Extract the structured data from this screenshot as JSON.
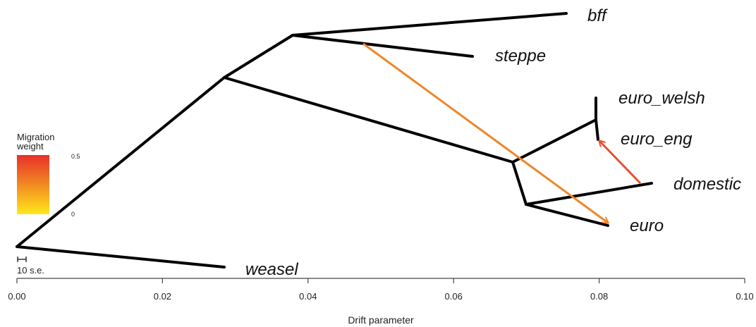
{
  "chart_data": {
    "type": "tree",
    "axis": {
      "title": "Drift parameter",
      "ticks": [
        "0.00",
        "0.02",
        "0.04",
        "0.06",
        "0.08",
        "0.10"
      ],
      "range": [
        0.0,
        0.1
      ]
    },
    "leaves": [
      {
        "id": "bff",
        "label": "bff"
      },
      {
        "id": "steppe",
        "label": "steppe"
      },
      {
        "id": "euro_welsh",
        "label": "euro_welsh"
      },
      {
        "id": "euro_eng",
        "label": "euro_eng"
      },
      {
        "id": "domestic",
        "label": "domestic"
      },
      {
        "id": "euro",
        "label": "euro"
      },
      {
        "id": "weasel",
        "label": "weasel"
      }
    ],
    "migration_edges": [
      {
        "from": "bff/steppe branch",
        "to": "euro",
        "weight": 0.35
      },
      {
        "from": "domestic",
        "to": "euro_eng",
        "weight": 0.45
      }
    ],
    "legend": {
      "title_line1": "Migration",
      "title_line2": "weight",
      "max_label": "0.5",
      "min_label": "0",
      "colors": [
        "#e8302a",
        "#f7a020",
        "#ffe81a"
      ]
    },
    "scale_bar": {
      "label": "10 s.e."
    }
  }
}
